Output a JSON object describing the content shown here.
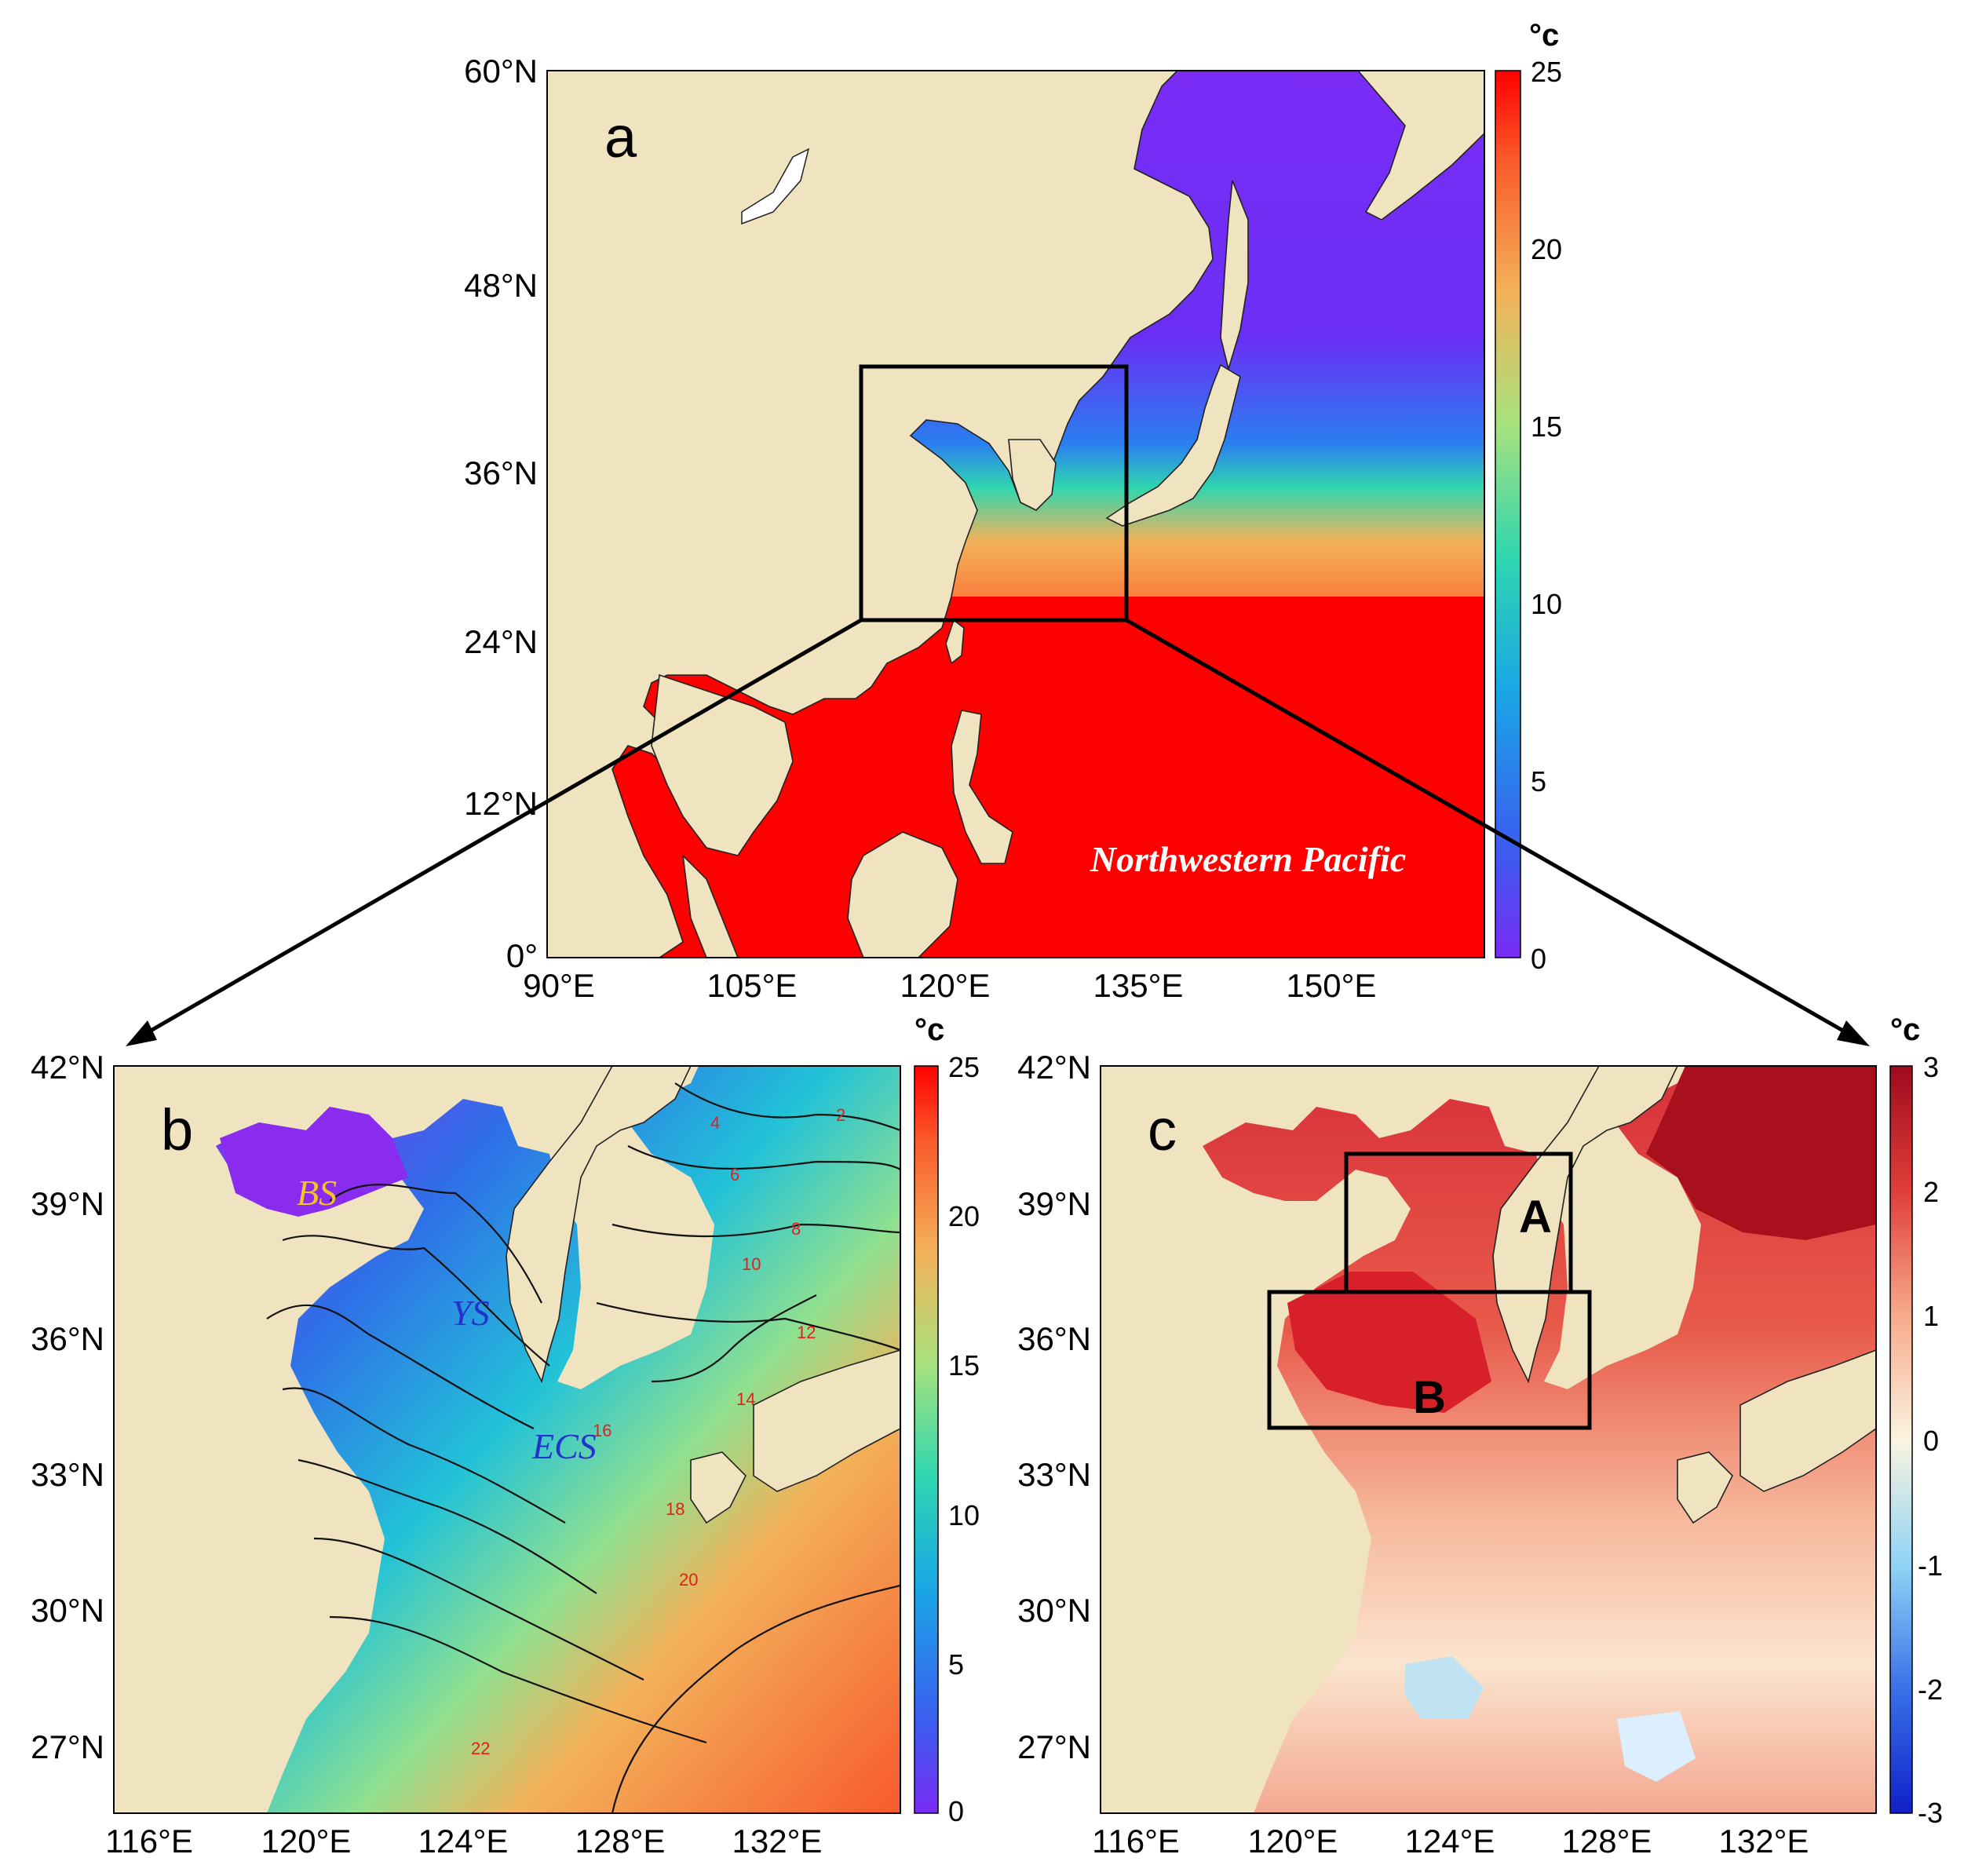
{
  "panels": {
    "a": {
      "letter": "a",
      "lat_ticks": [
        "60°N",
        "48°N",
        "36°N",
        "24°N",
        "12°N",
        "0°"
      ],
      "lon_ticks": [
        "90°E",
        "105°E",
        "120°E",
        "135°E",
        "150°E"
      ],
      "ocean_label": "Northwestern Pacific",
      "colorbar": {
        "unit": "°c",
        "ticks": [
          "25",
          "20",
          "15",
          "10",
          "5",
          "0"
        ],
        "range": [
          0,
          25
        ],
        "colormap": "rainbow"
      }
    },
    "b": {
      "letter": "b",
      "lat_ticks": [
        "42°N",
        "39°N",
        "36°N",
        "33°N",
        "30°N",
        "27°N"
      ],
      "lon_ticks": [
        "116°E",
        "120°E",
        "124°E",
        "128°E",
        "132°E"
      ],
      "regions": {
        "bs": "BS",
        "ys": "YS",
        "ecs": "ECS"
      },
      "contour_labels": [
        "2",
        "4",
        "6",
        "8",
        "10",
        "12",
        "14",
        "16",
        "18",
        "20",
        "22"
      ],
      "colorbar": {
        "unit": "°c",
        "ticks": [
          "25",
          "20",
          "15",
          "10",
          "5",
          "0"
        ],
        "range": [
          0,
          25
        ],
        "colormap": "rainbow"
      }
    },
    "c": {
      "letter": "c",
      "lat_ticks": [
        "42°N",
        "39°N",
        "36°N",
        "33°N",
        "30°N",
        "27°N"
      ],
      "lon_ticks": [
        "116°E",
        "120°E",
        "124°E",
        "128°E",
        "132°E"
      ],
      "boxes": {
        "a": "A",
        "b": "B"
      },
      "colorbar": {
        "unit": "°c",
        "ticks": [
          "3",
          "2",
          "1",
          "0",
          "-1",
          "-2",
          "-3"
        ],
        "range": [
          -3,
          3
        ],
        "colormap": "blue-white-red"
      }
    }
  },
  "colors": {
    "land": "#efe3c0",
    "warm": "#ff0000",
    "cold": "#7b2cf5",
    "bs_label": "#f2c522",
    "ys_label": "#2233cc",
    "ecs_label": "#2233cc",
    "contour_label": "#e0201a"
  }
}
